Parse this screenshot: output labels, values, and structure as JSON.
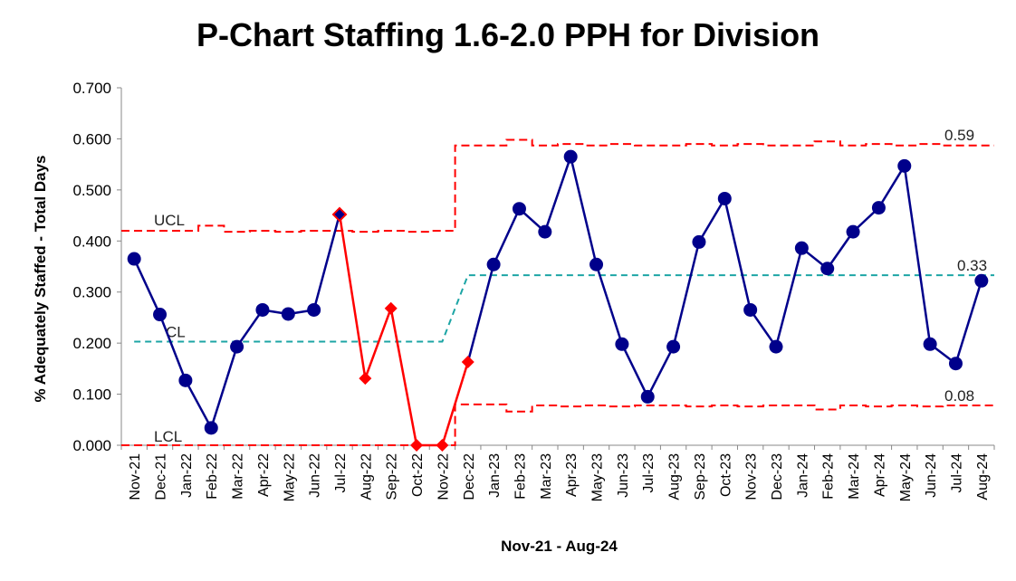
{
  "chart_data": {
    "type": "line",
    "title": "P-Chart Staffing 1.6-2.0 PPH for Division",
    "xlabel": "Nov-21 - Aug-24",
    "ylabel": "% Adequately Staffed - Total Days",
    "ylim": [
      0,
      0.7
    ],
    "yticks": [
      "0.000",
      "0.100",
      "0.200",
      "0.300",
      "0.400",
      "0.500",
      "0.600",
      "0.700"
    ],
    "grid": false,
    "categories": [
      "Nov-21",
      "Dec-21",
      "Jan-22",
      "Feb-22",
      "Mar-22",
      "Apr-22",
      "May-22",
      "Jun-22",
      "Jul-22",
      "Aug-22",
      "Sep-22",
      "Oct-22",
      "Nov-22",
      "Dec-22",
      "Jan-23",
      "Feb-23",
      "Mar-23",
      "Apr-23",
      "May-23",
      "Jun-23",
      "Jul-23",
      "Aug-23",
      "Sep-23",
      "Oct-23",
      "Nov-23",
      "Dec-23",
      "Jan-24",
      "Feb-24",
      "Mar-24",
      "Apr-24",
      "May-24",
      "Jun-24",
      "Jul-24",
      "Aug-24"
    ],
    "series": [
      {
        "role": "proportion",
        "color": "#00008B",
        "values": [
          0.365,
          0.256,
          0.127,
          0.034,
          0.193,
          0.265,
          0.257,
          0.265,
          0.452,
          0.131,
          0.268,
          0.0,
          0.0,
          0.163,
          0.354,
          0.463,
          0.418,
          0.565,
          0.354,
          0.198,
          0.095,
          0.193,
          0.398,
          0.483,
          0.265,
          0.193,
          0.386,
          0.346,
          0.418,
          0.465,
          0.547,
          0.198,
          0.16,
          0.322
        ]
      },
      {
        "role": "ucl",
        "color": "#FF0000",
        "values": [
          0.42,
          0.42,
          0.42,
          0.43,
          0.418,
          0.42,
          0.418,
          0.42,
          0.42,
          0.418,
          0.42,
          0.418,
          0.42,
          0.587,
          0.587,
          0.598,
          0.587,
          0.59,
          0.587,
          0.59,
          0.587,
          0.587,
          0.59,
          0.587,
          0.59,
          0.587,
          0.587,
          0.595,
          0.587,
          0.59,
          0.587,
          0.59,
          0.587,
          0.587
        ]
      },
      {
        "role": "lcl",
        "color": "#FF0000",
        "values": [
          0,
          0,
          0,
          0,
          0,
          0,
          0,
          0,
          0,
          0,
          0,
          0,
          0,
          0.08,
          0.08,
          0.066,
          0.078,
          0.076,
          0.078,
          0.076,
          0.078,
          0.078,
          0.076,
          0.078,
          0.076,
          0.078,
          0.078,
          0.07,
          0.078,
          0.076,
          0.078,
          0.076,
          0.078,
          0.078
        ]
      },
      {
        "role": "cl",
        "color": "#1CA5A5",
        "values": [
          0.203,
          0.203,
          0.203,
          0.203,
          0.203,
          0.203,
          0.203,
          0.203,
          0.203,
          0.203,
          0.203,
          0.203,
          0.203,
          0.333,
          0.333,
          0.333,
          0.333,
          0.333,
          0.333,
          0.333,
          0.333,
          0.333,
          0.333,
          0.333,
          0.333,
          0.333,
          0.333,
          0.333,
          0.333,
          0.333,
          0.333,
          0.333,
          0.333,
          0.333
        ]
      }
    ],
    "red_points": [
      8,
      9,
      10,
      11,
      12,
      13
    ],
    "annotations": {
      "ucl_label": "UCL",
      "cl_label": "CL",
      "lcl_label": "LCL",
      "ucl_value": "0.59",
      "cl_value": "0.33",
      "lcl_value": "0.08"
    },
    "colors": {
      "point": "#00008B",
      "signal": "#FF0000",
      "limit": "#FF0000",
      "center": "#1CA5A5"
    }
  }
}
